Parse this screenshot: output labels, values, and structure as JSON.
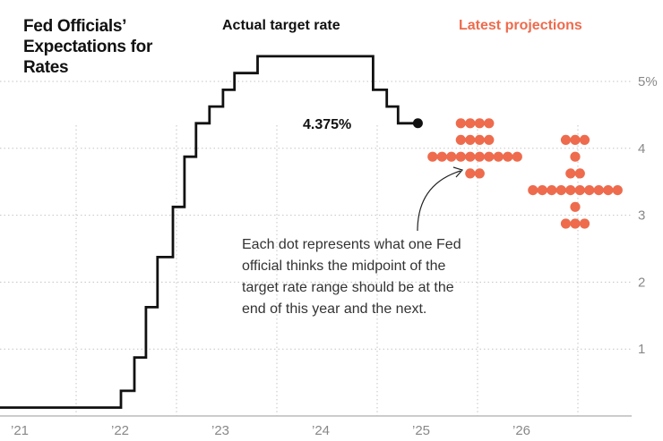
{
  "title": "Fed Officials’ Expectations for Rates",
  "headers": {
    "actual": "Actual target rate",
    "projections": "Latest projections"
  },
  "annotation": "Each dot represents what one Fed official thinks the midpoint of the target rate range should be at the end of this year and the next.",
  "colors": {
    "line": "#111111",
    "dots": "#ee6b4d",
    "grid": "#c4c4c4",
    "tick_text": "#888888"
  },
  "chart_data": {
    "type": "step-line-with-dot-plot",
    "y_ticks": [
      {
        "value": 5,
        "label": "5%"
      },
      {
        "value": 4,
        "label": "4"
      },
      {
        "value": 3,
        "label": "3"
      },
      {
        "value": 2,
        "label": "2"
      },
      {
        "value": 1,
        "label": "1"
      }
    ],
    "x_ticks": [
      "’21",
      "’22",
      "’23",
      "’24",
      "’25",
      "’26"
    ],
    "ylim": [
      0,
      5.5
    ],
    "actual_rate": {
      "name": "Actual target rate",
      "last_label": "4.375%",
      "points": [
        [
          "2021-01-01",
          0.125
        ],
        [
          "2022-03-17",
          0.375
        ],
        [
          "2022-05-05",
          0.875
        ],
        [
          "2022-06-16",
          1.625
        ],
        [
          "2022-07-28",
          2.375
        ],
        [
          "2022-09-22",
          3.125
        ],
        [
          "2022-11-03",
          3.875
        ],
        [
          "2022-12-15",
          4.375
        ],
        [
          "2023-02-02",
          4.625
        ],
        [
          "2023-03-23",
          4.875
        ],
        [
          "2023-05-04",
          5.125
        ],
        [
          "2023-07-27",
          5.375
        ],
        [
          "2024-09-19",
          4.875
        ],
        [
          "2024-11-08",
          4.625
        ],
        [
          "2024-12-19",
          4.375
        ],
        [
          "2025-03-01",
          4.375
        ]
      ]
    },
    "projections": [
      {
        "period": "end of 2025",
        "rows": [
          {
            "rate": 4.375,
            "count": 4
          },
          {
            "rate": 4.125,
            "count": 4
          },
          {
            "rate": 3.875,
            "count": 10
          },
          {
            "rate": 3.625,
            "count": 2
          }
        ]
      },
      {
        "period": "end of 2026",
        "rows": [
          {
            "rate": 4.125,
            "count": 3
          },
          {
            "rate": 3.875,
            "count": 1
          },
          {
            "rate": 3.625,
            "count": 2
          },
          {
            "rate": 3.375,
            "count": 10
          },
          {
            "rate": 3.125,
            "count": 1
          },
          {
            "rate": 2.875,
            "count": 3
          }
        ]
      }
    ]
  }
}
